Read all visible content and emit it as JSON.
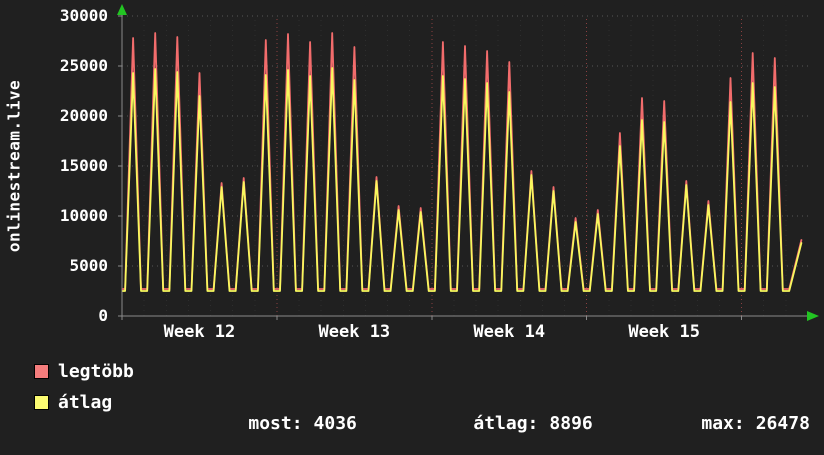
{
  "chart_data": {
    "type": "line",
    "title": "onlinestream.live",
    "ylabel": "onlinestream.live",
    "ylim": [
      0,
      30000
    ],
    "y_ticks": [
      "0",
      "5000",
      "10000",
      "15000",
      "20000",
      "25000",
      "30000"
    ],
    "x_tick_labels": [
      "Week 12",
      "Week 13",
      "Week 14",
      "Week 15"
    ],
    "x_axis_span_days": 31,
    "week_gridline_days": [
      0,
      7,
      14,
      21,
      28
    ],
    "grid": {
      "horizontal_every": 5000,
      "style": "dotted",
      "legend_position": "bottom-left"
    },
    "series": [
      {
        "name": "legtöbb",
        "color": "#f26c6c",
        "trough": 2700,
        "daily_peaks": [
          27800,
          28300,
          27900,
          24300,
          13300,
          13800,
          27600,
          28200,
          27400,
          28300,
          26900,
          13900,
          11000,
          10800,
          27400,
          27000,
          26500,
          25400,
          14500,
          12900,
          9800,
          10600,
          18300,
          21800,
          21500,
          13500,
          11500,
          23800,
          26300,
          25800
        ],
        "final_value": 7600
      },
      {
        "name": "átlag",
        "color": "#f8f85e",
        "trough": 2500,
        "daily_peaks": [
          24300,
          24700,
          24400,
          22000,
          12900,
          13400,
          24100,
          24600,
          24000,
          24800,
          23600,
          13500,
          10600,
          10400,
          24000,
          23700,
          23300,
          22400,
          14100,
          12500,
          9400,
          10200,
          17000,
          19600,
          19400,
          13100,
          11100,
          21400,
          23300,
          22900
        ],
        "final_value": 7300
      }
    ],
    "colors": {
      "background": "#202020",
      "grid_minor": "#565656",
      "grid_day": "#2e2e2e",
      "grid_week": "#8a4040",
      "axis": "#8a8a8a",
      "arrow": "#22c422",
      "text": "#ffffff"
    }
  },
  "legend": {
    "items": [
      {
        "label": "legtöbb",
        "color": "#f47c7c"
      },
      {
        "label": "átlag",
        "color": "#fbfb71"
      }
    ]
  },
  "stats": {
    "most": {
      "label": "most:",
      "value": "4036"
    },
    "avg": {
      "label": "átlag:",
      "value": "8896"
    },
    "max": {
      "label": "max:",
      "value": "26478"
    }
  }
}
